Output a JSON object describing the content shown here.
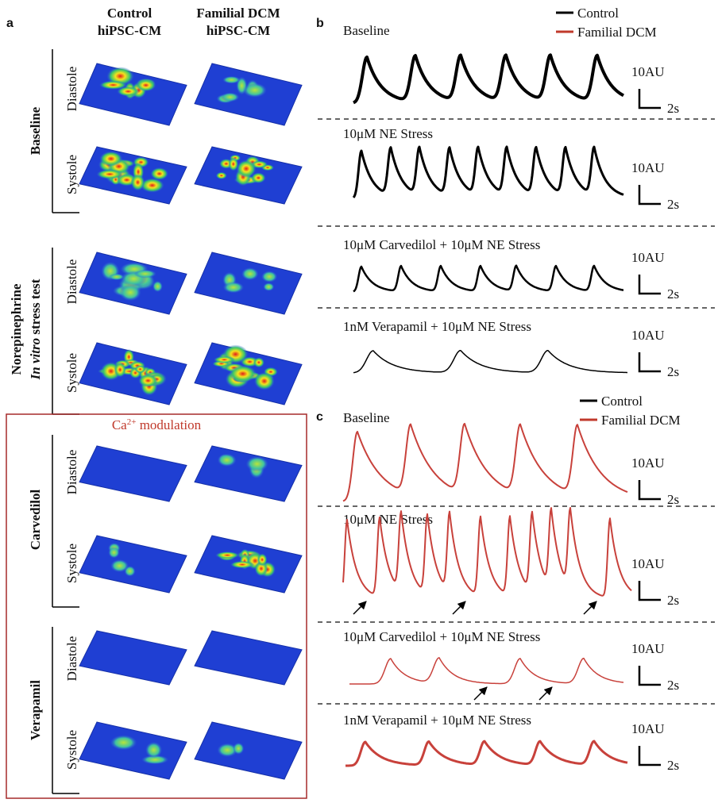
{
  "panel_a": {
    "label": "a",
    "columns": [
      [
        "Control",
        "hiPSC-CM"
      ],
      [
        "Familial DCM",
        "hiPSC-CM"
      ]
    ],
    "baseline": {
      "title": "Baseline",
      "rows": [
        "Diastole",
        "Systole"
      ]
    },
    "norepinephrine": {
      "title": "Norepinephrine",
      "subtitle_italic": "In vitro",
      "subtitle_rest": " stress test",
      "rows": [
        "Diastole",
        "Systole"
      ]
    },
    "modulation": {
      "base": "Ca",
      "sup": "2+",
      "rest": " modulation"
    },
    "carvedilol": {
      "title": "Carvedilol",
      "rows": [
        "Diastole",
        "Systole"
      ]
    },
    "verapamil": {
      "title": "Verapamil",
      "rows": [
        "Diastole",
        "Systole"
      ]
    }
  },
  "panel_b": {
    "label": "b",
    "legend": [
      "Control",
      "Familial DCM"
    ],
    "traces": [
      {
        "label": "Baseline",
        "scale_y": "10AU",
        "scale_x": "2s"
      },
      {
        "label": "10μM NE Stress",
        "scale_y": "10AU",
        "scale_x": "2s"
      },
      {
        "label": "10μM Carvedilol + 10μM NE Stress",
        "scale_y": "10AU",
        "scale_x": "2s"
      },
      {
        "label": "1nM Verapamil + 10μM NE Stress",
        "scale_y": "10AU",
        "scale_x": "2s"
      }
    ]
  },
  "panel_c": {
    "label": "c",
    "legend": [
      "Control",
      "Familial DCM"
    ],
    "traces": [
      {
        "label": "Baseline",
        "scale_y": "10AU",
        "scale_x": "2s"
      },
      {
        "label": "10μM NE Stress",
        "scale_y": "10AU",
        "scale_x": "2s"
      },
      {
        "label": "10μM Carvedilol + 10μM NE Stress",
        "scale_y": "10AU",
        "scale_x": "2s"
      },
      {
        "label": "1nM Verapamil + 10μM NE Stress",
        "scale_y": "10AU",
        "scale_x": "2s"
      }
    ]
  }
}
